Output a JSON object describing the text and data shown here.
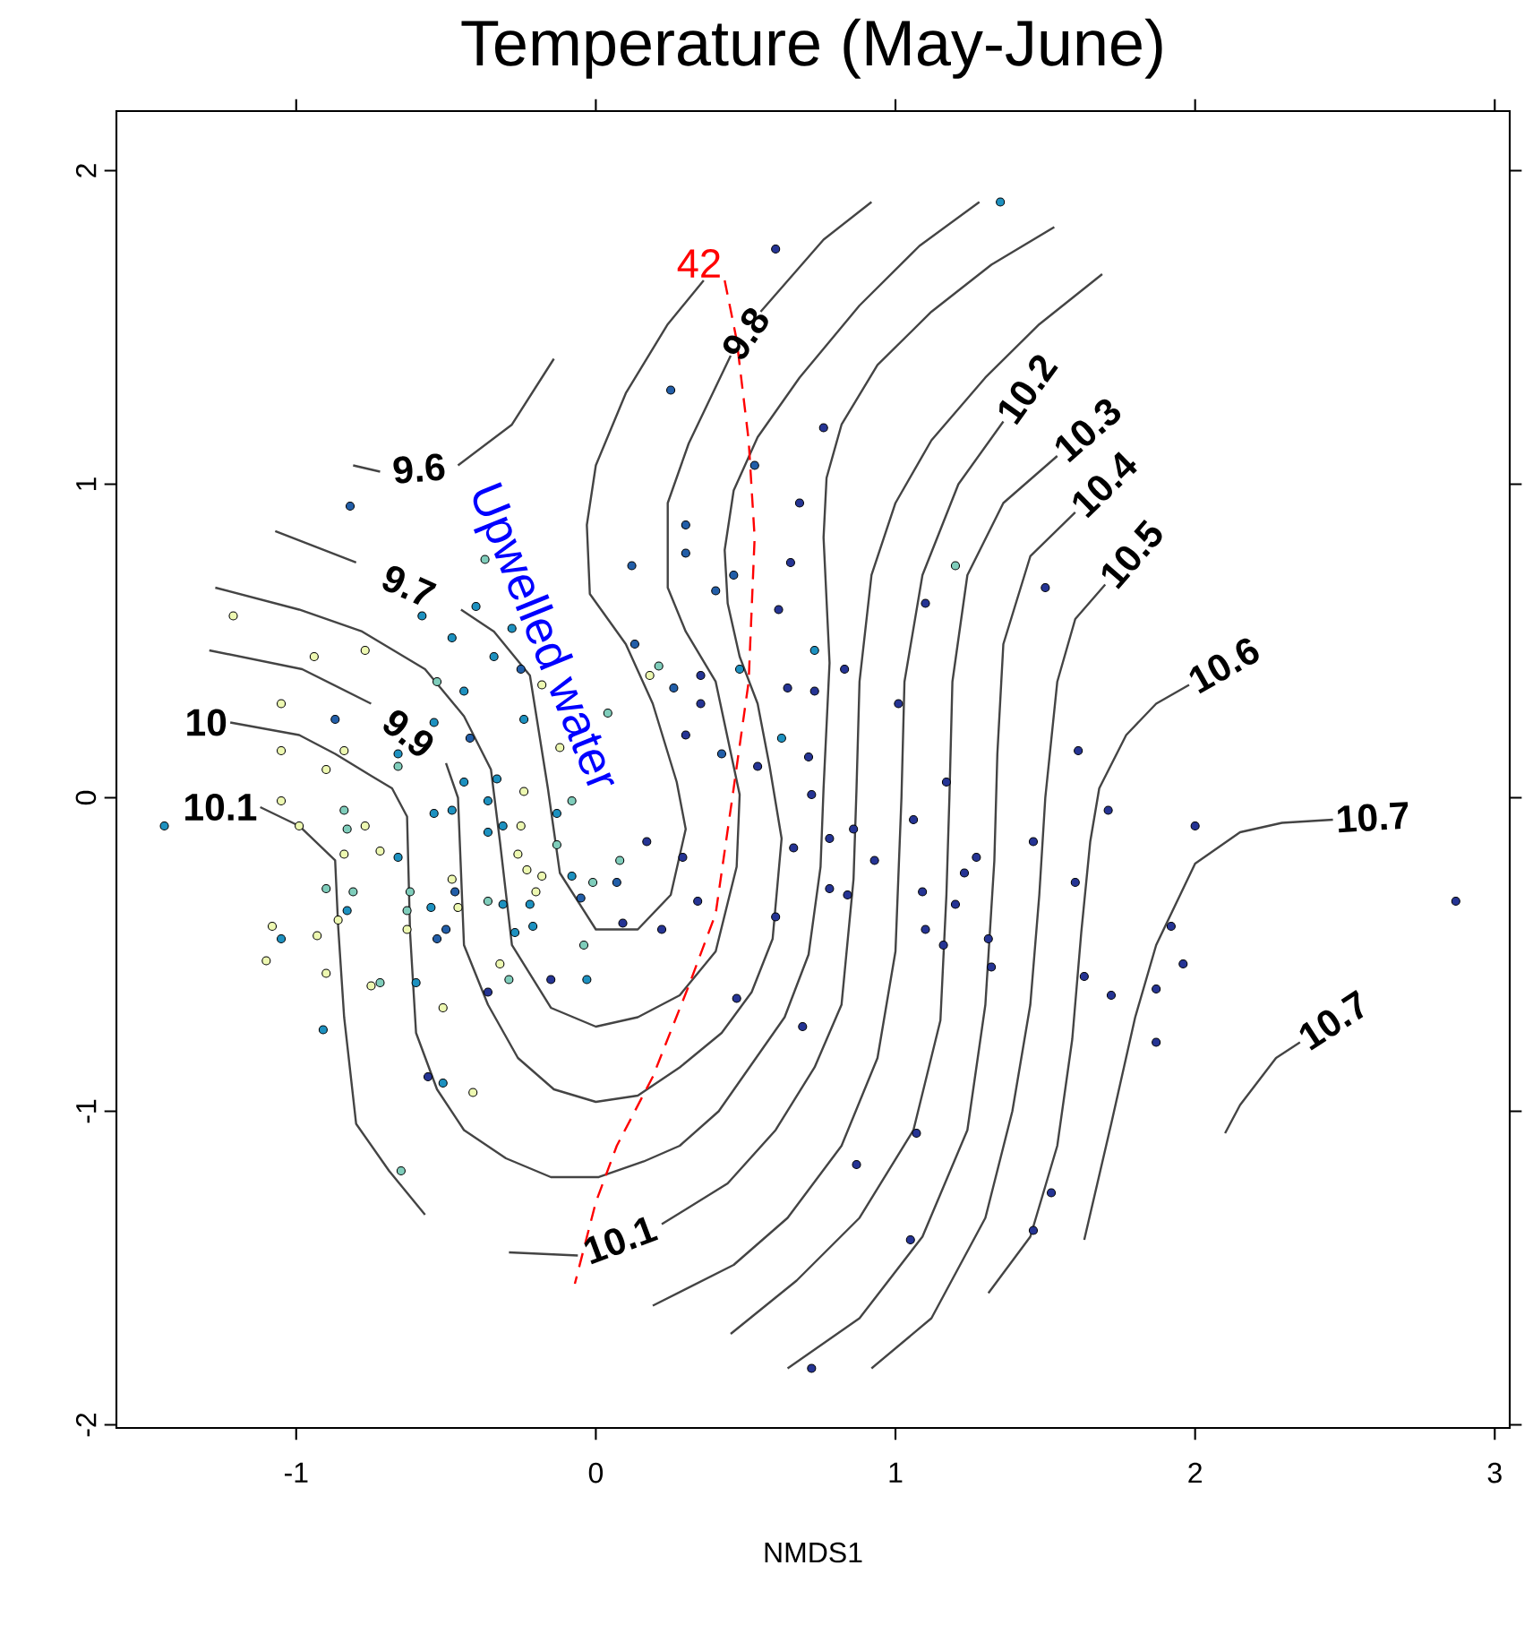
{
  "chart_data": {
    "type": "scatter",
    "title": "Temperature (May-June)",
    "xlabel": "NMDS1",
    "xlim": [
      -1.6,
      3.05
    ],
    "ylim": [
      -2.01,
      2.19
    ],
    "xticks": [
      -1,
      0,
      1,
      2,
      3
    ],
    "yticks": [
      -2,
      -1,
      0,
      1,
      2
    ],
    "marker": "circle",
    "line_style": "solid",
    "series": [
      {
        "type": "line",
        "marker": "none",
        "color": "#444444",
        "name": "9.6",
        "x": [
          -0.81,
          -0.72,
          -0.6,
          -0.46,
          -0.28,
          -0.14
        ],
        "values": [
          1.06,
          1.04,
          null,
          1.06,
          1.19,
          1.4
        ]
      },
      {
        "type": "line",
        "marker": "none",
        "color": "#444444",
        "name": "9.7",
        "x": [
          -1.07,
          -0.8,
          -0.62,
          -0.45,
          -0.34,
          -0.22,
          -0.16,
          -0.12,
          0,
          0.14,
          0.25,
          0.3,
          0.27,
          0.19,
          0.1,
          -0.02,
          -0.03,
          0,
          0.1,
          0.24,
          0.36
        ],
        "values": [
          0.85,
          0.75,
          null,
          0.6,
          0.53,
          0.39,
          0.03,
          -0.24,
          -0.42,
          -0.42,
          -0.31,
          -0.1,
          0.05,
          0.3,
          0.49,
          0.65,
          0.87,
          1.06,
          1.29,
          1.51,
          1.65
        ]
      },
      {
        "type": "line",
        "marker": "none",
        "color": "#444444",
        "name": "9.8",
        "x": [
          -1.27,
          -0.99,
          -0.78,
          -0.57,
          -0.44,
          -0.35,
          -0.32,
          -0.28,
          -0.15,
          0,
          0.14,
          0.28,
          0.4,
          0.47,
          0.48,
          0.4,
          0.3,
          0.24,
          0.24,
          0.31,
          0.45,
          0.5,
          0.55,
          0.76,
          0.92
        ],
        "values": [
          0.67,
          0.6,
          0.53,
          0.41,
          0.26,
          0.09,
          -0.14,
          -0.47,
          -0.67,
          -0.73,
          -0.7,
          -0.63,
          -0.49,
          -0.22,
          0.01,
          0.37,
          0.53,
          0.67,
          0.94,
          1.13,
          1.41,
          null,
          1.55,
          1.78,
          1.9
        ]
      },
      {
        "type": "line",
        "marker": "none",
        "color": "#444444",
        "name": "9.9",
        "x": [
          -1.29,
          -0.98,
          -0.75,
          -0.6,
          -0.5,
          -0.46,
          -0.44,
          -0.36,
          -0.26,
          -0.14,
          0,
          0.14,
          0.28,
          0.42,
          0.52,
          0.59,
          0.62,
          0.58,
          0.54,
          0.48,
          0.44,
          0.43,
          0.46,
          0.54,
          0.68,
          0.88,
          1.08,
          1.28
        ],
        "values": [
          0.47,
          0.41,
          0.3,
          null,
          0.11,
          0,
          -0.47,
          -0.66,
          -0.83,
          -0.93,
          -0.97,
          -0.95,
          -0.86,
          -0.75,
          -0.62,
          -0.45,
          -0.13,
          0.1,
          0.3,
          0.45,
          0.62,
          0.79,
          0.98,
          1.15,
          1.34,
          1.57,
          1.76,
          1.9
        ]
      },
      {
        "type": "line",
        "marker": "none",
        "color": "#444444",
        "name": "10",
        "x": [
          -1.22,
          -0.99,
          -0.87,
          -0.75,
          -0.68,
          -0.63,
          -0.62,
          -0.6,
          -0.53,
          -0.44,
          -0.3,
          -0.15,
          0.01,
          0.16,
          0.28,
          0.41,
          0.52,
          0.63,
          0.71,
          0.75,
          0.76,
          0.78,
          0.76,
          0.77,
          0.82,
          0.94,
          1.12,
          1.32,
          1.53
        ],
        "values": [
          0.24,
          0.2,
          0.14,
          0.07,
          0.03,
          -0.06,
          -0.43,
          -0.75,
          -0.93,
          -1.06,
          -1.15,
          -1.21,
          -1.21,
          -1.16,
          -1.11,
          -1.0,
          -0.85,
          -0.7,
          -0.5,
          -0.22,
          0.03,
          0.43,
          0.83,
          1.02,
          1.19,
          1.38,
          1.55,
          1.7,
          1.82
        ]
      },
      {
        "type": "line",
        "name": "10.1",
        "marker": "none",
        "color": "#444444",
        "x": [
          -1.12,
          -0.99,
          -0.87,
          -0.86,
          -0.84,
          -0.8,
          -0.69,
          -0.57
        ],
        "values": [
          -0.03,
          -0.09,
          -0.2,
          -0.41,
          -0.7,
          -1.04,
          -1.19,
          -1.33
        ]
      },
      {
        "type": "line",
        "name": "10.1",
        "marker": "none",
        "color": "#444444",
        "x": [
          -0.29,
          -0.06,
          0.08,
          0.22,
          0.44,
          0.6,
          0.73,
          0.82,
          0.86,
          0.87,
          0.88,
          0.92,
          1.0,
          1.12,
          1.3,
          1.48,
          1.69
        ],
        "values": [
          -1.45,
          -1.46,
          null,
          -1.36,
          -1.23,
          -1.06,
          -0.86,
          -0.66,
          -0.26,
          0.03,
          0.37,
          0.71,
          0.94,
          1.14,
          1.34,
          1.51,
          1.67
        ]
      },
      {
        "type": "line",
        "marker": "none",
        "color": "#444444",
        "name": "10.2",
        "x": [
          0.19,
          0.46,
          0.64,
          0.82,
          0.94,
          1.0,
          1.02,
          1.03,
          1.09,
          1.21,
          1.36
        ],
        "values": [
          -1.62,
          -1.49,
          -1.34,
          -1.11,
          -0.83,
          -0.49,
          0,
          0.37,
          0.71,
          1.0,
          1.2
        ]
      },
      {
        "type": "line",
        "marker": "none",
        "color": "#444444",
        "name": "10.3",
        "x": [
          0.45,
          0.67,
          0.88,
          1.06,
          1.15,
          1.17,
          1.18,
          1.19,
          1.24,
          1.36,
          1.54
        ],
        "values": [
          -1.71,
          -1.54,
          -1.34,
          -1.06,
          -0.71,
          -0.31,
          0,
          0.37,
          0.71,
          0.94,
          1.09
        ]
      },
      {
        "type": "line",
        "marker": "none",
        "color": "#444444",
        "name": "10.4",
        "x": [
          0.64,
          0.88,
          1.09,
          1.24,
          1.3,
          1.33,
          1.34,
          1.36,
          1.45,
          1.6
        ],
        "values": [
          -1.82,
          -1.66,
          -1.4,
          -1.06,
          -0.66,
          -0.2,
          0.14,
          0.49,
          0.77,
          0.91
        ]
      },
      {
        "type": "line",
        "marker": "none",
        "color": "#444444",
        "name": "10.5",
        "x": [
          0.92,
          1.12,
          1.3,
          1.39,
          1.45,
          1.48,
          1.5,
          1.54,
          1.6,
          1.7
        ],
        "values": [
          -1.82,
          -1.66,
          -1.34,
          -1.0,
          -0.66,
          -0.31,
          0,
          0.37,
          0.57,
          0.68
        ]
      },
      {
        "type": "line",
        "marker": "none",
        "color": "#444444",
        "name": "10.6",
        "x": [
          1.31,
          1.45,
          1.54,
          1.59,
          1.62,
          1.65,
          1.68,
          1.77,
          1.87,
          1.98
        ],
        "values": [
          -1.58,
          -1.4,
          -1.11,
          -0.77,
          -0.43,
          -0.14,
          0.03,
          0.2,
          0.3,
          0.36
        ]
      },
      {
        "type": "line",
        "marker": "none",
        "color": "#444444",
        "name": "10.7",
        "x": [
          1.63,
          1.72,
          1.8,
          1.87,
          2.0,
          2.15,
          2.29,
          2.46
        ],
        "values": [
          -1.41,
          -1.04,
          -0.7,
          -0.47,
          -0.21,
          -0.11,
          -0.08,
          -0.07
        ]
      },
      {
        "type": "line",
        "marker": "none",
        "color": "#444444",
        "name": "10.7",
        "x": [
          2.1,
          2.15,
          2.27,
          2.35
        ],
        "values": [
          -1.07,
          -0.98,
          -0.83,
          -0.78
        ]
      },
      {
        "type": "scatter",
        "color": "#edf8b1",
        "x": [
          -1.21,
          -0.94,
          -0.77,
          -0.18,
          -1.05,
          -0.9,
          -1.05,
          -0.84,
          -0.12,
          0.18,
          -1.05,
          -0.99,
          -0.77,
          -0.84,
          -0.72,
          -1.08,
          -1.1,
          -0.93,
          -0.9,
          -0.75,
          -0.86,
          -0.63,
          -0.48,
          -0.46,
          -0.51,
          -0.41,
          -0.24,
          -0.25,
          -0.26,
          -0.18,
          -0.23,
          -0.2,
          -0.32
        ],
        "values": [
          0.58,
          0.45,
          0.47,
          0.36,
          0.3,
          0.09,
          0.15,
          0.15,
          0.16,
          0.39,
          -0.01,
          -0.09,
          -0.09,
          -0.18,
          -0.17,
          -0.41,
          -0.52,
          -0.44,
          -0.56,
          -0.6,
          -0.39,
          -0.42,
          -0.26,
          -0.35,
          -0.67,
          -0.94,
          0.02,
          -0.09,
          -0.18,
          -0.25,
          -0.23,
          -0.3,
          -0.53
        ]
      },
      {
        "type": "scatter",
        "color": "#7fcdbb",
        "x": [
          -0.37,
          -0.53,
          -0.66,
          0.04,
          0.21,
          -0.84,
          -0.83,
          -0.81,
          -0.9,
          -0.72,
          -0.63,
          -0.62,
          -0.65,
          -0.36,
          -0.29,
          -0.04,
          -0.01,
          0.08,
          -0.13,
          -0.08,
          1.2
        ],
        "values": [
          0.76,
          0.37,
          0.1,
          0.27,
          0.42,
          -0.04,
          -0.1,
          -0.3,
          -0.29,
          -0.59,
          -0.36,
          -0.3,
          -1.19,
          -0.33,
          -0.58,
          -0.47,
          -0.27,
          -0.2,
          -0.15,
          -0.01,
          0.74
        ]
      },
      {
        "type": "scatter",
        "color": "#1d91c0",
        "x": [
          0.73,
          0.48,
          -0.58,
          -0.4,
          -0.48,
          -0.28,
          -0.34,
          -0.44,
          -0.66,
          -0.54,
          -0.24,
          -1.44,
          -1.05,
          -0.91,
          -0.83,
          -0.66,
          -0.6,
          -0.55,
          -0.51,
          -0.54,
          -0.48,
          -0.44,
          -0.36,
          -0.33,
          -0.36,
          -0.31,
          -0.31,
          -0.22,
          -0.27,
          -0.21,
          -0.03,
          -0.08,
          -0.13,
          1.35,
          0.62
        ],
        "values": [
          0.47,
          0.41,
          0.58,
          0.61,
          0.51,
          0.54,
          0.45,
          0.34,
          0.14,
          0.24,
          0.25,
          -0.09,
          -0.45,
          -0.74,
          -0.36,
          -0.19,
          -0.59,
          -0.35,
          -0.91,
          -0.05,
          -0.04,
          0.05,
          -0.01,
          0.06,
          -0.11,
          -0.09,
          -0.34,
          -0.34,
          -0.43,
          -0.41,
          -0.58,
          -0.25,
          -0.05,
          1.9,
          0.19
        ]
      },
      {
        "type": "scatter",
        "color": "#225ea8",
        "x": [
          0.25,
          0.12,
          0.3,
          0.3,
          0.46,
          0.4,
          0.13,
          0.26,
          0.42,
          0.53,
          -0.82,
          -0.25,
          -0.87,
          -0.42,
          -0.53,
          -0.5,
          -0.47,
          0.07,
          -0.05
        ],
        "values": [
          1.3,
          0.74,
          0.87,
          0.78,
          0.71,
          0.66,
          0.49,
          0.35,
          0.14,
          1.06,
          0.93,
          0.41,
          0.25,
          0.19,
          -0.45,
          -0.42,
          -0.3,
          -0.27,
          -0.32
        ]
      },
      {
        "type": "scatter",
        "color": "#253494",
        "x": [
          1.61,
          1.71,
          2.0,
          2.87,
          1.17,
          1.06,
          1.46,
          1.27,
          1.23,
          1.09,
          1.2,
          1.1,
          1.16,
          1.31,
          1.32,
          1.6,
          1.63,
          1.72,
          1.87,
          1.96,
          1.92,
          1.87,
          1.07,
          0.87,
          1.52,
          1.46,
          1.05,
          0.72,
          0.69,
          0.66,
          0.71,
          0.72,
          0.78,
          0.78,
          0.84,
          0.86,
          0.93,
          0.47,
          0.6,
          0.34,
          0.6,
          0.76,
          0.68,
          1.1,
          1.5,
          0.83,
          1.01,
          0.65,
          0.61,
          0.35,
          0.64,
          0.73,
          0.35,
          0.54,
          0.17,
          0.29,
          0.22,
          0.09,
          -0.36,
          -0.15,
          -0.56,
          0.3
        ],
        "values": [
          0.15,
          -0.04,
          -0.09,
          -0.33,
          0.05,
          -0.07,
          -0.14,
          -0.19,
          -0.24,
          -0.3,
          -0.34,
          -0.42,
          -0.47,
          -0.45,
          -0.54,
          -0.27,
          -0.57,
          -0.63,
          -0.61,
          -0.53,
          -0.41,
          -0.78,
          -1.07,
          -1.17,
          -1.26,
          -1.38,
          -1.41,
          -1.82,
          -0.73,
          -0.16,
          0.13,
          0.01,
          -0.13,
          -0.29,
          -0.31,
          -0.1,
          -0.2,
          -0.64,
          -0.38,
          -0.33,
          1.75,
          1.18,
          0.94,
          0.62,
          0.67,
          0.41,
          0.3,
          0.75,
          0.6,
          0.39,
          0.35,
          0.34,
          0.3,
          0.1,
          -0.14,
          -0.19,
          -0.42,
          -0.4,
          -0.62,
          -0.58,
          -0.89,
          0.2
        ]
      },
      {
        "type": "line",
        "name": "42",
        "marker": "none",
        "color": "#ff0000",
        "line_style": "dashed",
        "x": [
          0.43,
          0.47,
          0.51,
          0.53,
          0.51,
          0.46,
          0.4,
          0.31,
          0.19,
          0.07,
          0,
          -0.07
        ],
        "values": [
          1.65,
          1.46,
          1.14,
          0.83,
          0.37,
          0.03,
          -0.37,
          -0.6,
          -0.89,
          -1.11,
          -1.29,
          -1.55
        ]
      }
    ],
    "annotations": [
      "Upwelled water"
    ]
  }
}
